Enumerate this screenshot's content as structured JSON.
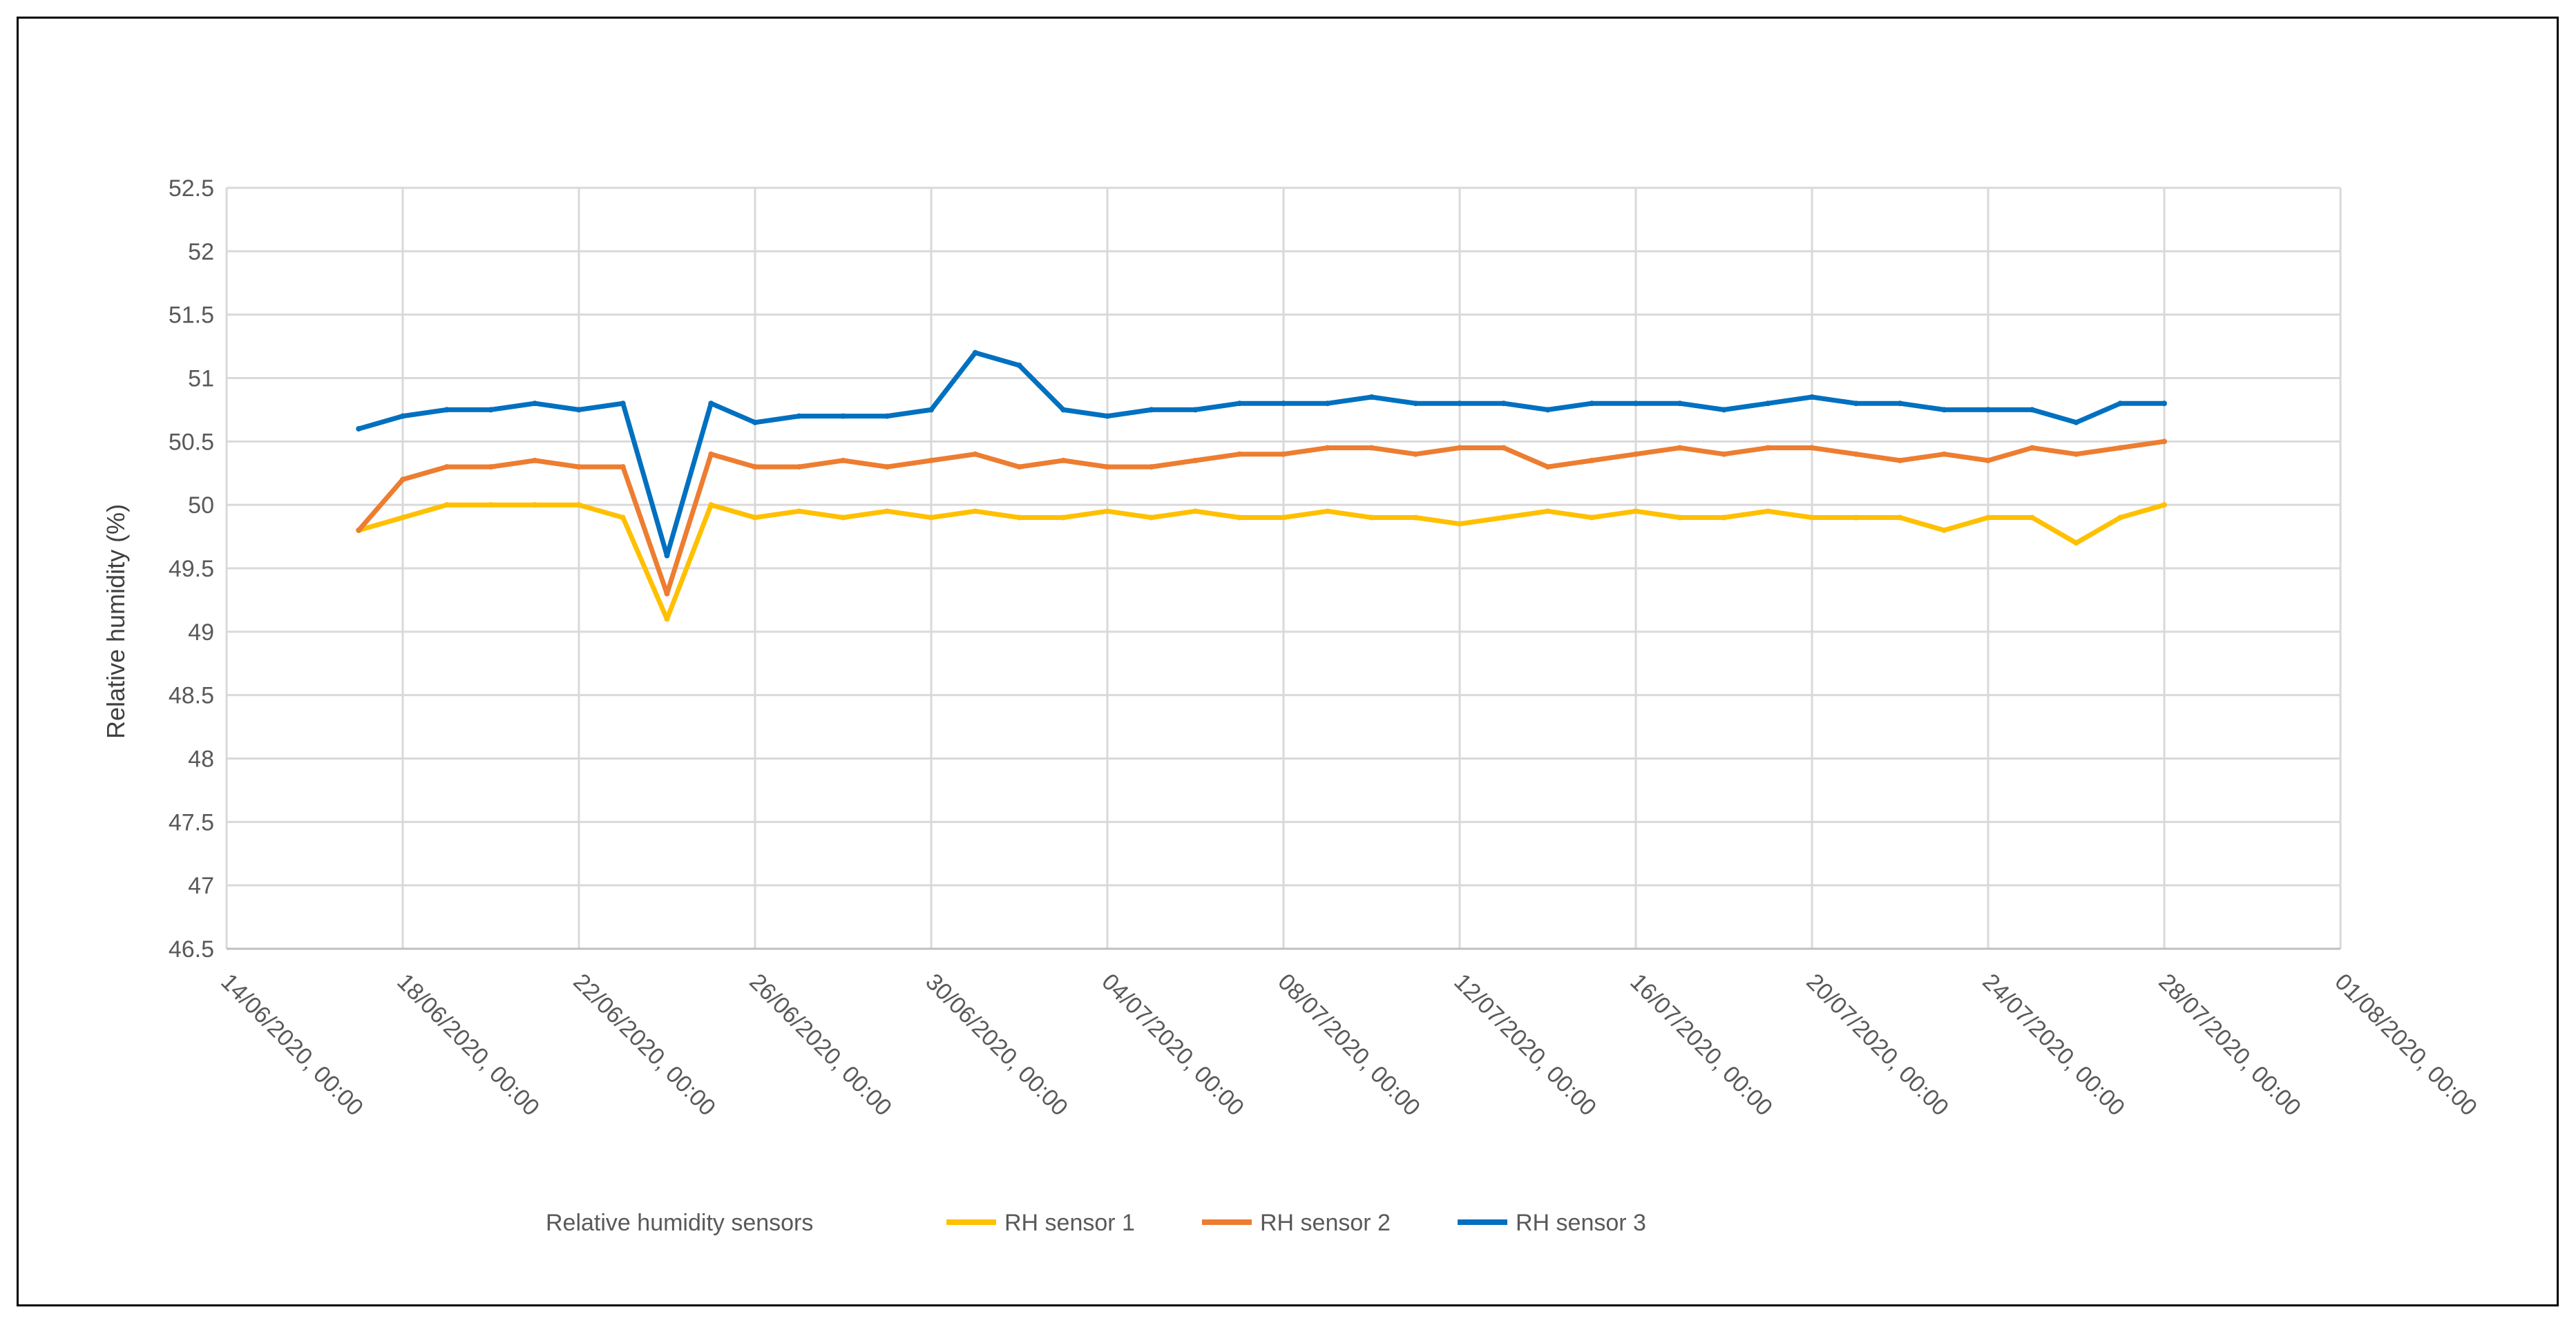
{
  "chart_data": {
    "type": "line",
    "title": "",
    "xlabel": "",
    "ylabel": "Relative humidity (%)",
    "ylim": [
      46.5,
      52.5
    ],
    "y_ticks": [
      "46.5",
      "47",
      "47.5",
      "48",
      "48.5",
      "49",
      "49.5",
      "50",
      "50.5",
      "51",
      "51.5",
      "52",
      "52.5"
    ],
    "x_tick_labels": [
      "14/06/2020, 00:00",
      "18/06/2020, 00:00",
      "22/06/2020, 00:00",
      "26/06/2020, 00:00",
      "30/06/2020, 00:00",
      "04/07/2020, 00:00",
      "08/07/2020, 00:00",
      "12/07/2020, 00:00",
      "16/07/2020, 00:00",
      "20/07/2020, 00:00",
      "24/07/2020, 00:00",
      "28/07/2020, 00:00",
      "01/08/2020, 00:00"
    ],
    "xlim": [
      "2020-06-14",
      "2020-08-01"
    ],
    "grid": true,
    "legend_title": "Relative humidity sensors",
    "legend_position": "bottom",
    "series": [
      {
        "name": "RH sensor 1",
        "color": "#FFC000",
        "x": [
          "2020-06-17",
          "2020-06-18",
          "2020-06-19",
          "2020-06-20",
          "2020-06-21",
          "2020-06-22",
          "2020-06-23",
          "2020-06-24",
          "2020-06-25",
          "2020-06-26",
          "2020-06-27",
          "2020-06-28",
          "2020-06-29",
          "2020-06-30",
          "2020-07-01",
          "2020-07-02",
          "2020-07-03",
          "2020-07-04",
          "2020-07-05",
          "2020-07-06",
          "2020-07-07",
          "2020-07-08",
          "2020-07-09",
          "2020-07-10",
          "2020-07-11",
          "2020-07-12",
          "2020-07-13",
          "2020-07-14",
          "2020-07-15",
          "2020-07-16",
          "2020-07-17",
          "2020-07-18",
          "2020-07-19",
          "2020-07-20",
          "2020-07-21",
          "2020-07-22",
          "2020-07-23",
          "2020-07-24",
          "2020-07-25",
          "2020-07-26",
          "2020-07-27",
          "2020-07-28"
        ],
        "values": [
          49.8,
          49.9,
          50.0,
          50.0,
          50.0,
          50.0,
          49.9,
          49.1,
          50.0,
          49.9,
          49.95,
          49.9,
          49.95,
          49.9,
          49.95,
          49.9,
          49.9,
          49.95,
          49.9,
          49.95,
          49.9,
          49.9,
          49.95,
          49.9,
          49.9,
          49.85,
          49.9,
          49.95,
          49.9,
          49.95,
          49.9,
          49.9,
          49.95,
          49.9,
          49.9,
          49.9,
          49.8,
          49.9,
          49.9,
          49.7,
          49.9,
          50.0
        ]
      },
      {
        "name": "RH sensor 2",
        "color": "#ED7D31",
        "x": [
          "2020-06-17",
          "2020-06-18",
          "2020-06-19",
          "2020-06-20",
          "2020-06-21",
          "2020-06-22",
          "2020-06-23",
          "2020-06-24",
          "2020-06-25",
          "2020-06-26",
          "2020-06-27",
          "2020-06-28",
          "2020-06-29",
          "2020-06-30",
          "2020-07-01",
          "2020-07-02",
          "2020-07-03",
          "2020-07-04",
          "2020-07-05",
          "2020-07-06",
          "2020-07-07",
          "2020-07-08",
          "2020-07-09",
          "2020-07-10",
          "2020-07-11",
          "2020-07-12",
          "2020-07-13",
          "2020-07-14",
          "2020-07-15",
          "2020-07-16",
          "2020-07-17",
          "2020-07-18",
          "2020-07-19",
          "2020-07-20",
          "2020-07-21",
          "2020-07-22",
          "2020-07-23",
          "2020-07-24",
          "2020-07-25",
          "2020-07-26",
          "2020-07-27",
          "2020-07-28"
        ],
        "values": [
          49.8,
          50.2,
          50.3,
          50.3,
          50.35,
          50.3,
          50.3,
          49.3,
          50.4,
          50.3,
          50.3,
          50.35,
          50.3,
          50.35,
          50.4,
          50.3,
          50.35,
          50.3,
          50.3,
          50.35,
          50.4,
          50.4,
          50.45,
          50.45,
          50.4,
          50.45,
          50.45,
          50.3,
          50.35,
          50.4,
          50.45,
          50.4,
          50.45,
          50.45,
          50.4,
          50.35,
          50.4,
          50.35,
          50.45,
          50.4,
          50.45,
          50.5
        ]
      },
      {
        "name": "RH sensor 3",
        "color": "#0070C0",
        "x": [
          "2020-06-17",
          "2020-06-18",
          "2020-06-19",
          "2020-06-20",
          "2020-06-21",
          "2020-06-22",
          "2020-06-23",
          "2020-06-24",
          "2020-06-25",
          "2020-06-26",
          "2020-06-27",
          "2020-06-28",
          "2020-06-29",
          "2020-06-30",
          "2020-07-01",
          "2020-07-02",
          "2020-07-03",
          "2020-07-04",
          "2020-07-05",
          "2020-07-06",
          "2020-07-07",
          "2020-07-08",
          "2020-07-09",
          "2020-07-10",
          "2020-07-11",
          "2020-07-12",
          "2020-07-13",
          "2020-07-14",
          "2020-07-15",
          "2020-07-16",
          "2020-07-17",
          "2020-07-18",
          "2020-07-19",
          "2020-07-20",
          "2020-07-21",
          "2020-07-22",
          "2020-07-23",
          "2020-07-24",
          "2020-07-25",
          "2020-07-26",
          "2020-07-27",
          "2020-07-28"
        ],
        "values": [
          50.6,
          50.7,
          50.75,
          50.75,
          50.8,
          50.75,
          50.8,
          49.6,
          50.8,
          50.65,
          50.7,
          50.7,
          50.7,
          50.75,
          51.2,
          51.1,
          50.75,
          50.7,
          50.75,
          50.75,
          50.8,
          50.8,
          50.8,
          50.85,
          50.8,
          50.8,
          50.8,
          50.75,
          50.8,
          50.8,
          50.8,
          50.75,
          50.8,
          50.85,
          50.8,
          50.8,
          50.75,
          50.75,
          50.75,
          50.65,
          50.8,
          50.8
        ]
      }
    ]
  }
}
